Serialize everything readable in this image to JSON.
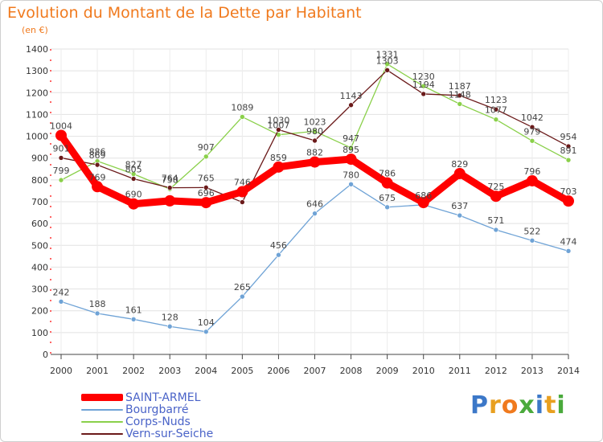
{
  "title": "Evolution du Montant de la Dette par Habitant",
  "subtitle": "(en €)",
  "logo_text": "Proxiti",
  "chart_data": {
    "type": "line",
    "x": [
      "2000",
      "2001",
      "2002",
      "2003",
      "2004",
      "2005",
      "2006",
      "2007",
      "2008",
      "2009",
      "2010",
      "2011",
      "2012",
      "2013",
      "2014"
    ],
    "ylim": [
      0,
      1400
    ],
    "yticks": [
      0,
      100,
      200,
      300,
      400,
      500,
      600,
      700,
      800,
      900,
      1000,
      1100,
      1200,
      1300,
      1400
    ],
    "grid": true,
    "legend_position": "bottom-left",
    "series": [
      {
        "name": "SAINT-ARMEL",
        "color": "#ff0000",
        "values": [
          1004,
          769,
          690,
          704,
          696,
          746,
          859,
          882,
          895,
          786,
          696,
          829,
          725,
          796,
          703
        ],
        "labels": [
          "1004",
          "769",
          "690",
          "",
          "696",
          "746",
          "859",
          "882",
          "895",
          "786",
          "",
          "829",
          "725",
          "796",
          "703"
        ]
      },
      {
        "name": "Bourgbarré",
        "color": "#6fa3d6",
        "values": [
          242,
          188,
          161,
          128,
          104,
          265,
          456,
          646,
          780,
          675,
          686,
          637,
          571,
          522,
          474
        ],
        "labels": [
          "242",
          "188",
          "161",
          "128",
          "104",
          "265",
          "456",
          "646",
          "780",
          "675",
          "686",
          "637",
          "571",
          "522",
          "474"
        ]
      },
      {
        "name": "Corps-Nuds",
        "color": "#8ad04a",
        "values": [
          799,
          886,
          827,
          758,
          907,
          1089,
          1007,
          1023,
          947,
          1331,
          1230,
          1148,
          1077,
          979,
          891
        ],
        "labels": [
          "799",
          "886",
          "827",
          "758",
          "907",
          "1089",
          "1007",
          "1023",
          "947",
          "1331",
          "1230",
          "1148",
          "1077",
          "979",
          "891"
        ]
      },
      {
        "name": "Vern-sur-Seiche",
        "color": "#6b1a1a",
        "values": [
          901,
          869,
          805,
          764,
          765,
          698,
          1030,
          980,
          1143,
          1303,
          1194,
          1187,
          1123,
          1042,
          954
        ],
        "labels": [
          "901",
          "869",
          "805",
          "764",
          "765",
          "",
          "1030",
          "980",
          "1143",
          "1303",
          "1194",
          "1187",
          "1123",
          "1042",
          "954"
        ]
      }
    ]
  }
}
